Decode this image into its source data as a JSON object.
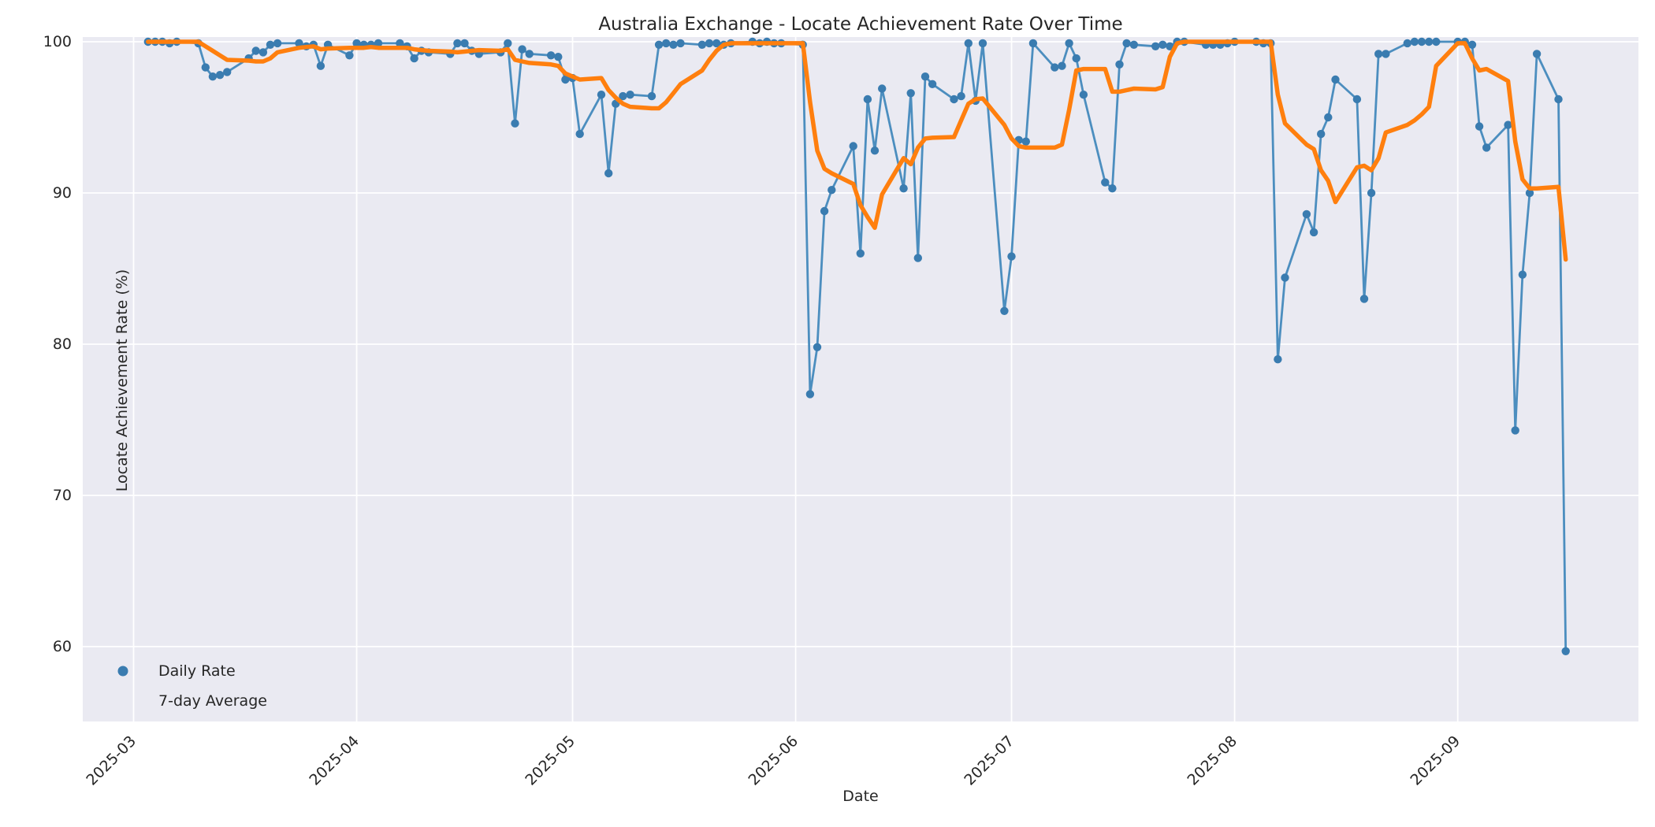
{
  "figure": {
    "title": "Australia Exchange - Locate Achievement Rate Over Time",
    "xlabel": "Date",
    "ylabel": "Locate Achievement Rate (%)"
  },
  "legend": {
    "daily_label": "Daily Rate",
    "avg_label": "7-day Average"
  },
  "colors": {
    "plot_background": "#eaeaf2",
    "figure_background": "#ffffff",
    "grid": "#ffffff",
    "daily_line": "#4c8ebf",
    "daily_marker": "#3a7cb0",
    "avg_line": "#ff7f0e",
    "text": "#262626"
  },
  "chart_data": {
    "type": "line",
    "title": "Australia Exchange - Locate Achievement Rate Over Time",
    "xlabel": "Date",
    "ylabel": "Locate Achievement Rate (%)",
    "ylim": [
      55.0,
      100.3
    ],
    "x_axis_start": "2025-03-01",
    "x_ticks": [
      "2025-03",
      "2025-04",
      "2025-05",
      "2025-06",
      "2025-07",
      "2025-08",
      "2025-09"
    ],
    "x_tick_dates": [
      "2025-03-01",
      "2025-04-01",
      "2025-05-01",
      "2025-06-01",
      "2025-07-01",
      "2025-08-01",
      "2025-09-01"
    ],
    "y_ticks": [
      60,
      70,
      80,
      90,
      100
    ],
    "grid": true,
    "legend_position": "lower left",
    "dates": [
      "2025-03-03",
      "2025-03-04",
      "2025-03-05",
      "2025-03-06",
      "2025-03-07",
      "2025-03-10",
      "2025-03-11",
      "2025-03-12",
      "2025-03-13",
      "2025-03-14",
      "2025-03-17",
      "2025-03-18",
      "2025-03-19",
      "2025-03-20",
      "2025-03-21",
      "2025-03-24",
      "2025-03-25",
      "2025-03-26",
      "2025-03-27",
      "2025-03-28",
      "2025-03-31",
      "2025-04-01",
      "2025-04-02",
      "2025-04-03",
      "2025-04-04",
      "2025-04-07",
      "2025-04-08",
      "2025-04-09",
      "2025-04-10",
      "2025-04-11",
      "2025-04-14",
      "2025-04-15",
      "2025-04-16",
      "2025-04-17",
      "2025-04-18",
      "2025-04-21",
      "2025-04-22",
      "2025-04-23",
      "2025-04-24",
      "2025-04-25",
      "2025-04-28",
      "2025-04-29",
      "2025-04-30",
      "2025-05-01",
      "2025-05-02",
      "2025-05-05",
      "2025-05-06",
      "2025-05-07",
      "2025-05-08",
      "2025-05-09",
      "2025-05-12",
      "2025-05-13",
      "2025-05-14",
      "2025-05-15",
      "2025-05-16",
      "2025-05-19",
      "2025-05-20",
      "2025-05-21",
      "2025-05-22",
      "2025-05-23",
      "2025-05-26",
      "2025-05-27",
      "2025-05-28",
      "2025-05-29",
      "2025-05-30",
      "2025-06-02",
      "2025-06-03",
      "2025-06-04",
      "2025-06-05",
      "2025-06-06",
      "2025-06-09",
      "2025-06-10",
      "2025-06-11",
      "2025-06-12",
      "2025-06-13",
      "2025-06-16",
      "2025-06-17",
      "2025-06-18",
      "2025-06-19",
      "2025-06-20",
      "2025-06-23",
      "2025-06-24",
      "2025-06-25",
      "2025-06-26",
      "2025-06-27",
      "2025-06-30",
      "2025-07-01",
      "2025-07-02",
      "2025-07-03",
      "2025-07-04",
      "2025-07-07",
      "2025-07-08",
      "2025-07-09",
      "2025-07-10",
      "2025-07-11",
      "2025-07-14",
      "2025-07-15",
      "2025-07-16",
      "2025-07-17",
      "2025-07-18",
      "2025-07-21",
      "2025-07-22",
      "2025-07-23",
      "2025-07-24",
      "2025-07-25",
      "2025-07-28",
      "2025-07-29",
      "2025-07-30",
      "2025-07-31",
      "2025-08-01",
      "2025-08-04",
      "2025-08-05",
      "2025-08-06",
      "2025-08-07",
      "2025-08-08",
      "2025-08-11",
      "2025-08-12",
      "2025-08-13",
      "2025-08-14",
      "2025-08-15",
      "2025-08-18",
      "2025-08-19",
      "2025-08-20",
      "2025-08-21",
      "2025-08-22",
      "2025-08-25",
      "2025-08-26",
      "2025-08-27",
      "2025-08-28",
      "2025-08-29",
      "2025-09-01",
      "2025-09-02",
      "2025-09-03",
      "2025-09-04",
      "2025-09-05",
      "2025-09-08",
      "2025-09-09",
      "2025-09-10",
      "2025-09-11",
      "2025-09-12",
      "2025-09-15",
      "2025-09-16"
    ],
    "series": [
      {
        "name": "Daily Rate",
        "color": "#4c8ebf",
        "values": [
          100,
          100,
          100,
          99.9,
          100,
          99.9,
          98.3,
          97.7,
          97.8,
          98.0,
          98.9,
          99.4,
          99.3,
          99.8,
          99.9,
          99.9,
          99.7,
          99.8,
          98.4,
          99.8,
          99.1,
          99.9,
          99.8,
          99.8,
          99.9,
          99.9,
          99.7,
          98.9,
          99.4,
          99.3,
          99.2,
          99.9,
          99.9,
          99.4,
          99.2,
          99.3,
          99.9,
          94.6,
          99.5,
          99.2,
          99.1,
          99.0,
          97.5,
          97.6,
          93.9,
          96.5,
          91.3,
          95.9,
          96.4,
          96.5,
          96.4,
          99.8,
          99.9,
          99.8,
          99.9,
          99.8,
          99.9,
          99.9,
          99.8,
          99.9,
          100,
          99.9,
          100,
          99.9,
          99.9,
          99.8,
          76.7,
          79.8,
          88.8,
          90.2,
          93.1,
          86.0,
          96.2,
          92.8,
          96.9,
          90.3,
          96.6,
          85.7,
          97.7,
          97.2,
          96.2,
          96.4,
          99.9,
          96.1,
          99.9,
          82.2,
          85.8,
          93.5,
          93.4,
          99.9,
          98.3,
          98.4,
          99.9,
          98.9,
          96.5,
          90.7,
          90.3,
          98.5,
          99.9,
          99.8,
          99.7,
          99.8,
          99.7,
          100,
          100,
          99.8,
          99.8,
          99.8,
          99.9,
          100,
          100,
          99.9,
          99.9,
          79.0,
          84.4,
          88.6,
          87.4,
          93.9,
          95.0,
          97.5,
          96.2,
          83.0,
          90.0,
          99.2,
          99.2,
          99.9,
          100,
          100,
          100,
          100,
          100,
          100,
          99.8,
          94.4,
          93.0,
          94.5,
          74.3,
          84.6,
          90.0,
          99.2,
          96.2,
          59.7
        ]
      },
      {
        "name": "7-day Average",
        "color": "#ff7f0e",
        "values": [
          100,
          100,
          100,
          100,
          100,
          100,
          99.7,
          99.4,
          99.1,
          98.8,
          98.75,
          98.7,
          98.7,
          98.9,
          99.3,
          99.6,
          99.65,
          99.7,
          99.5,
          99.55,
          99.6,
          99.6,
          99.6,
          99.65,
          99.6,
          99.6,
          99.6,
          99.5,
          99.45,
          99.4,
          99.35,
          99.3,
          99.35,
          99.4,
          99.45,
          99.4,
          99.5,
          98.8,
          98.7,
          98.6,
          98.5,
          98.4,
          97.9,
          97.7,
          97.5,
          97.6,
          96.8,
          96.3,
          95.9,
          95.7,
          95.6,
          95.6,
          96.0,
          96.6,
          97.2,
          98.1,
          98.8,
          99.4,
          99.8,
          99.9,
          99.9,
          99.9,
          99.9,
          99.9,
          99.9,
          99.9,
          96.0,
          92.8,
          91.6,
          91.3,
          90.6,
          89.2,
          88.4,
          87.7,
          89.9,
          92.3,
          91.9,
          93.0,
          93.6,
          93.65,
          93.7,
          94.8,
          95.9,
          96.2,
          96.25,
          94.5,
          93.6,
          93.1,
          93.0,
          93.0,
          93.0,
          93.2,
          95.5,
          98.1,
          98.2,
          98.2,
          96.7,
          96.7,
          96.8,
          96.9,
          96.85,
          97.0,
          99.0,
          99.9,
          100,
          100,
          100,
          100,
          100,
          100,
          100,
          100,
          100,
          96.5,
          94.6,
          93.2,
          92.9,
          91.5,
          90.8,
          89.4,
          91.7,
          91.8,
          91.5,
          92.3,
          94.0,
          94.5,
          94.8,
          95.2,
          95.7,
          98.4,
          99.9,
          99.9,
          98.9,
          98.1,
          98.2,
          97.4,
          93.4,
          90.9,
          90.3,
          90.3,
          90.4,
          85.6
        ]
      }
    ]
  }
}
